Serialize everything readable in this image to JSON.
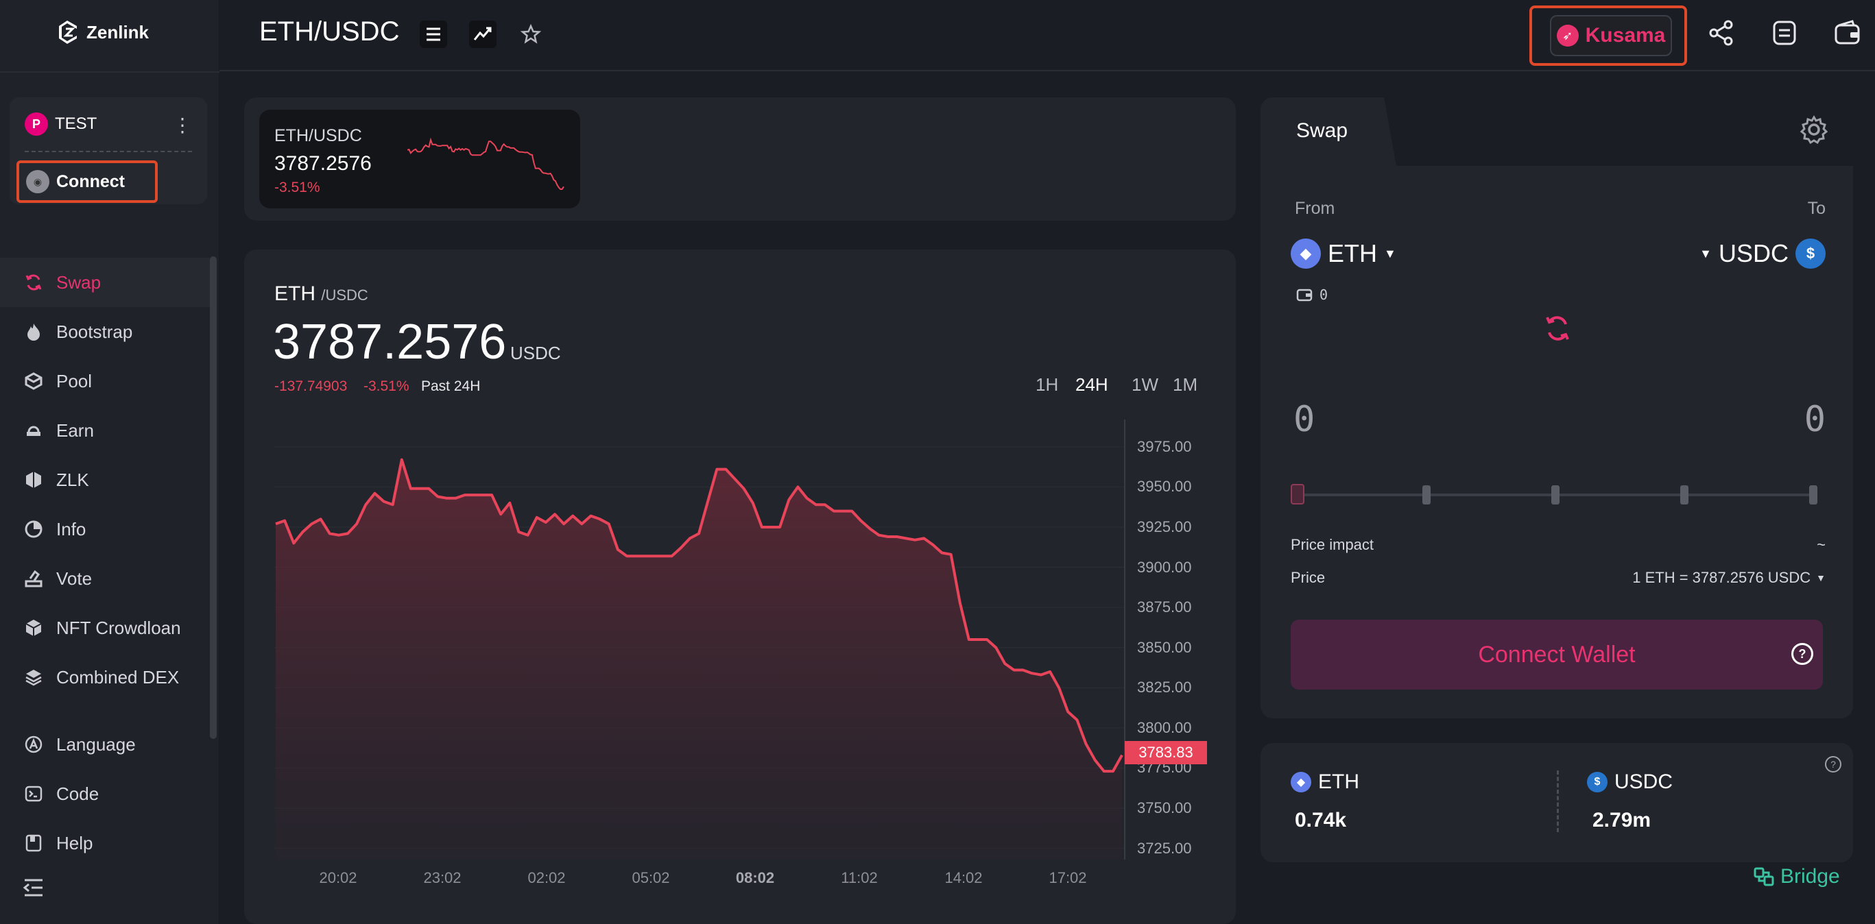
{
  "brand": {
    "name": "Zenlink"
  },
  "account": {
    "network_label": "TEST",
    "connect_label": "Connect"
  },
  "nav": {
    "items": [
      {
        "label": "Swap",
        "icon": "swap-icon"
      },
      {
        "label": "Bootstrap",
        "icon": "flame-icon"
      },
      {
        "label": "Pool",
        "icon": "pool-icon"
      },
      {
        "label": "Earn",
        "icon": "earn-icon"
      },
      {
        "label": "ZLK",
        "icon": "hexagon-icon"
      },
      {
        "label": "Info",
        "icon": "pie-chart-icon"
      },
      {
        "label": "Vote",
        "icon": "vote-icon"
      },
      {
        "label": "NFT Crowdloan",
        "icon": "cube-icon"
      },
      {
        "label": "Combined DEX",
        "icon": "layers-icon"
      }
    ],
    "bottom": [
      {
        "label": "Language",
        "icon": "language-icon"
      },
      {
        "label": "Code",
        "icon": "code-icon"
      },
      {
        "label": "Help",
        "icon": "book-icon"
      }
    ]
  },
  "header": {
    "pair": "ETH/USDC",
    "network": "Kusama"
  },
  "mini": {
    "pair": "ETH/USDC",
    "price": "3787.2576",
    "change": "-3.51%"
  },
  "chart_header": {
    "base": "ETH",
    "quote": "/USDC",
    "price": "3787.2576",
    "unit": "USDC",
    "change_abs": "-137.74903",
    "change_pct": "-3.51%",
    "period_label": "Past 24H"
  },
  "timeframes": [
    "1H",
    "24H",
    "1W",
    "1M"
  ],
  "active_timeframe": "24H",
  "chart_data": {
    "type": "area",
    "x_ticks": [
      "20:02",
      "23:02",
      "02:02",
      "05:02",
      "08:02",
      "11:02",
      "14:02",
      "17:02"
    ],
    "y_ticks": [
      "3975.00",
      "3950.00",
      "3925.00",
      "3900.00",
      "3875.00",
      "3850.00",
      "3825.00",
      "3800.00",
      "3775.00",
      "3750.00",
      "3725.00"
    ],
    "ylim": [
      3718,
      3992
    ],
    "last_value_label": "3783.83",
    "color": "#e8455a",
    "values": [
      3927,
      3929,
      3915,
      3922,
      3927,
      3930,
      3921,
      3920,
      3921,
      3927,
      3939,
      3946,
      3941,
      3939,
      3967,
      3949,
      3949,
      3949,
      3944,
      3943,
      3943,
      3945,
      3945,
      3945,
      3945,
      3933,
      3940,
      3922,
      3920,
      3931,
      3928,
      3933,
      3927,
      3932,
      3927,
      3932,
      3930,
      3927,
      3911,
      3907,
      3907,
      3907,
      3907,
      3907,
      3907,
      3912,
      3918,
      3921,
      3941,
      3961,
      3961,
      3955,
      3949,
      3940,
      3925,
      3925,
      3925,
      3942,
      3950,
      3943,
      3939,
      3939,
      3935,
      3935,
      3935,
      3929,
      3924,
      3920,
      3919,
      3919,
      3918,
      3917,
      3918,
      3914,
      3909,
      3908,
      3878,
      3855,
      3855,
      3855,
      3850,
      3840,
      3836,
      3836,
      3834,
      3833,
      3835,
      3825,
      3810,
      3805,
      3790,
      3780,
      3773,
      3773,
      3783
    ]
  },
  "swap": {
    "tab_label": "Swap",
    "from_label": "From",
    "to_label": "To",
    "from_token": "ETH",
    "to_token": "USDC",
    "balance": "0",
    "from_amount": "0",
    "to_amount": "0",
    "price_impact_label": "Price impact",
    "price_impact_value": "~",
    "price_label": "Price",
    "price_value": "1 ETH = 3787.2576 USDC",
    "connect_wallet_label": "Connect Wallet"
  },
  "reserves": {
    "token_a": "ETH",
    "value_a": "0.74k",
    "token_b": "USDC",
    "value_b": "2.79m"
  },
  "bridge_label": "Bridge"
}
